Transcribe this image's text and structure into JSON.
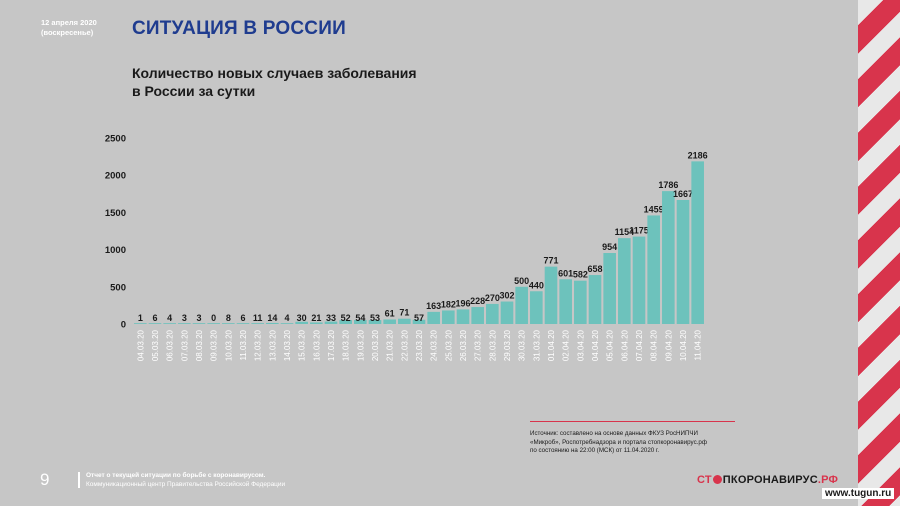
{
  "header": {
    "date_line1": "12 апреля 2020",
    "date_line2": "(воскресенье)",
    "title": "СИТУАЦИЯ В РОССИИ"
  },
  "colors": {
    "bar": "#6dc2bc",
    "title": "#1f3c8f",
    "accent": "#d8344c",
    "background": "#c6c6c6"
  },
  "chart_data": {
    "type": "bar",
    "title_line1": "Количество новых случаев заболевания",
    "title_line2": "в России за сутки",
    "categories": [
      "04.03.20",
      "05.03.20",
      "06.03.20",
      "07.03.20",
      "08.03.20",
      "09.03.20",
      "10.03.20",
      "11.03.20",
      "12.03.20",
      "13.03.20",
      "14.03.20",
      "15.03.20",
      "16.03.20",
      "17.03.20",
      "18.03.20",
      "19.03.20",
      "20.03.20",
      "21.03.20",
      "22.03.20",
      "23.03.20",
      "24.03.20",
      "25.03.20",
      "26.03.20",
      "27.03.20",
      "28.03.20",
      "29.03.20",
      "30.03.20",
      "31.03.20",
      "01.04.20",
      "02.04.20",
      "03.04.20",
      "04.04.20",
      "05.04.20",
      "06.04.20",
      "07.04.20",
      "08.04.20",
      "09.04.20",
      "10.04.20",
      "11.04.20"
    ],
    "values": [
      1,
      6,
      4,
      3,
      3,
      0,
      8,
      6,
      11,
      14,
      4,
      30,
      21,
      33,
      52,
      54,
      53,
      61,
      71,
      57,
      163,
      182,
      196,
      228,
      270,
      302,
      500,
      440,
      771,
      601,
      582,
      658,
      954,
      1154,
      1175,
      1459,
      1786,
      1667,
      2186
    ],
    "yticks": [
      0,
      500,
      1000,
      1500,
      2000,
      2500
    ],
    "ylim": [
      0,
      2500
    ],
    "grid": false,
    "legend": "none"
  },
  "source": {
    "line1": "Источник: составлено на основе данных ФКУЗ РосНИПЧИ",
    "line2": "«Микроб», Роспотребнадзора и портала стопкоронавирус.рф",
    "line3": "по состоянию на 22:00 (МСК) от 11.04.2020 г."
  },
  "footer": {
    "page_number": "9",
    "line1": "Отчет о текущей ситуации по борьбе с коронавирусом.",
    "line2": "Коммуникационный центр Правительства Российской Федерации"
  },
  "logo": {
    "part1": "СТ",
    "part2": "ПКОРОНАВИРУС",
    "part3": ".РФ"
  },
  "watermark": "www.tugun.ru"
}
